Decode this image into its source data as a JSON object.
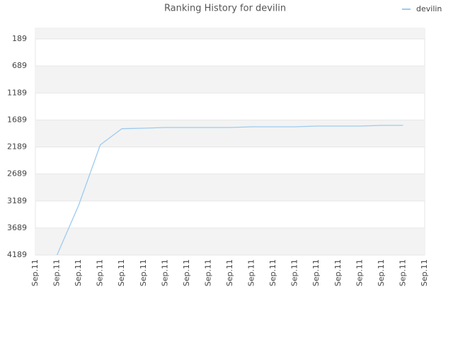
{
  "chart_data": {
    "type": "line",
    "title": "Ranking History for devilin",
    "categories": [
      "Sep.11",
      "Sep.11",
      "Sep.11",
      "Sep.11",
      "Sep.11",
      "Sep.11",
      "Sep.11",
      "Sep.11",
      "Sep.11",
      "Sep.11",
      "Sep.11",
      "Sep.11",
      "Sep.11",
      "Sep.11",
      "Sep.11",
      "Sep.11",
      "Sep.11",
      "Sep.11",
      "Sep.11"
    ],
    "series": [
      {
        "name": "devilin",
        "color": "#9ccbf0",
        "values": [
          null,
          4189,
          3269,
          2150,
          1850,
          1841,
          1828,
          1828,
          1828,
          1828,
          1815,
          1815,
          1815,
          1802,
          1802,
          1802,
          1789,
          1789,
          null
        ]
      }
    ],
    "ylim": [
      -8,
      4189
    ],
    "y_inverted": true,
    "yticks": [
      189,
      689,
      1189,
      1689,
      2189,
      2689,
      3189,
      3689,
      4189
    ],
    "grid": true,
    "legend": "top-right"
  }
}
